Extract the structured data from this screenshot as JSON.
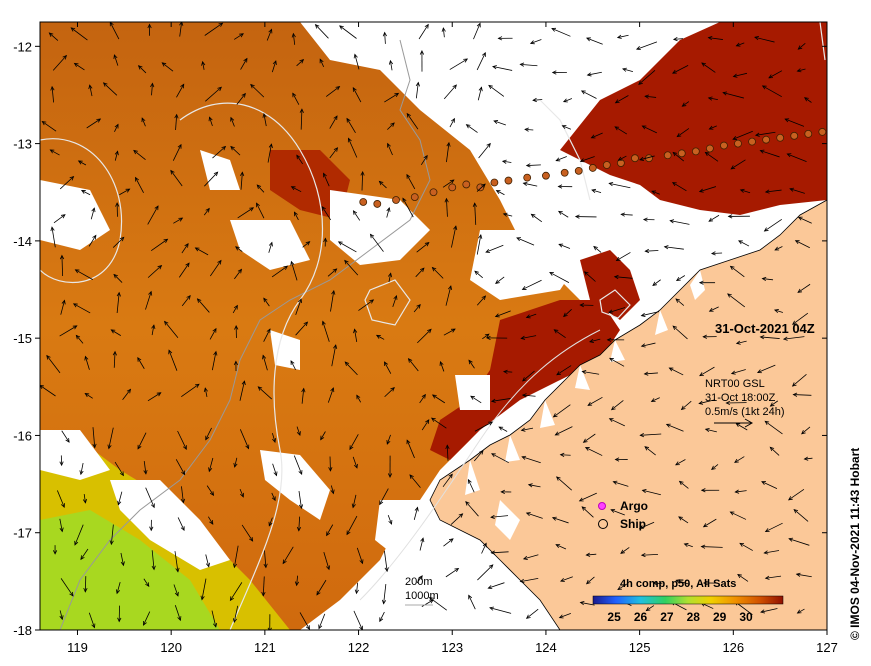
{
  "map": {
    "date_label": "31-Oct-2021 04Z",
    "current_model": {
      "name": "NRT00 GSL",
      "time": "31-Oct 18:00Z",
      "scale_label": "0.5m/s (1kt 24h)"
    },
    "legend": {
      "argo_label": "Argo",
      "ship_label": "Ship"
    },
    "contours": {
      "depth_200_label": "200m",
      "depth_1000_label": "1000m"
    },
    "colorbar": {
      "title": "4h comp, p50, All Sats",
      "ticks": [
        "25",
        "26",
        "27",
        "28",
        "29",
        "30"
      ],
      "min": 24.2,
      "max": 31.4
    },
    "credit": "© IMOS 04-Nov-2021 11:43 Hobart",
    "colors": {
      "land": "#fbc898",
      "sst_hot": "#a61a00",
      "sst_warm": "#d8720a",
      "sst_mid": "#e8a000",
      "sst_cool": "#c8d800",
      "sst_cooler": "#9ee02a"
    }
  },
  "chart_data": {
    "type": "map",
    "x_ticks": [
      "119",
      "120",
      "121",
      "122",
      "123",
      "124",
      "125",
      "126",
      "127"
    ],
    "y_ticks": [
      "-12",
      "-13",
      "-14",
      "-15",
      "-16",
      "-17",
      "-18"
    ],
    "xlim": [
      118.6,
      127
    ],
    "ylim": [
      -18,
      -11.75
    ],
    "ship_track": [
      [
        122.05,
        -13.6
      ],
      [
        122.2,
        -13.62
      ],
      [
        122.4,
        -13.58
      ],
      [
        122.6,
        -13.55
      ],
      [
        122.8,
        -13.5
      ],
      [
        123.0,
        -13.45
      ],
      [
        123.15,
        -13.42
      ],
      [
        123.3,
        -13.45
      ],
      [
        123.45,
        -13.4
      ],
      [
        123.6,
        -13.38
      ],
      [
        123.8,
        -13.35
      ],
      [
        124.0,
        -13.33
      ],
      [
        124.2,
        -13.3
      ],
      [
        124.35,
        -13.28
      ],
      [
        124.5,
        -13.25
      ],
      [
        124.65,
        -13.22
      ],
      [
        124.8,
        -13.2
      ],
      [
        124.95,
        -13.15
      ],
      [
        125.1,
        -13.15
      ],
      [
        125.3,
        -13.12
      ],
      [
        125.45,
        -13.1
      ],
      [
        125.6,
        -13.08
      ],
      [
        125.75,
        -13.05
      ],
      [
        125.9,
        -13.02
      ],
      [
        126.05,
        -13.0
      ],
      [
        126.2,
        -12.98
      ],
      [
        126.35,
        -12.96
      ],
      [
        126.5,
        -12.94
      ],
      [
        126.65,
        -12.92
      ],
      [
        126.8,
        -12.9
      ],
      [
        126.95,
        -12.88
      ]
    ]
  }
}
